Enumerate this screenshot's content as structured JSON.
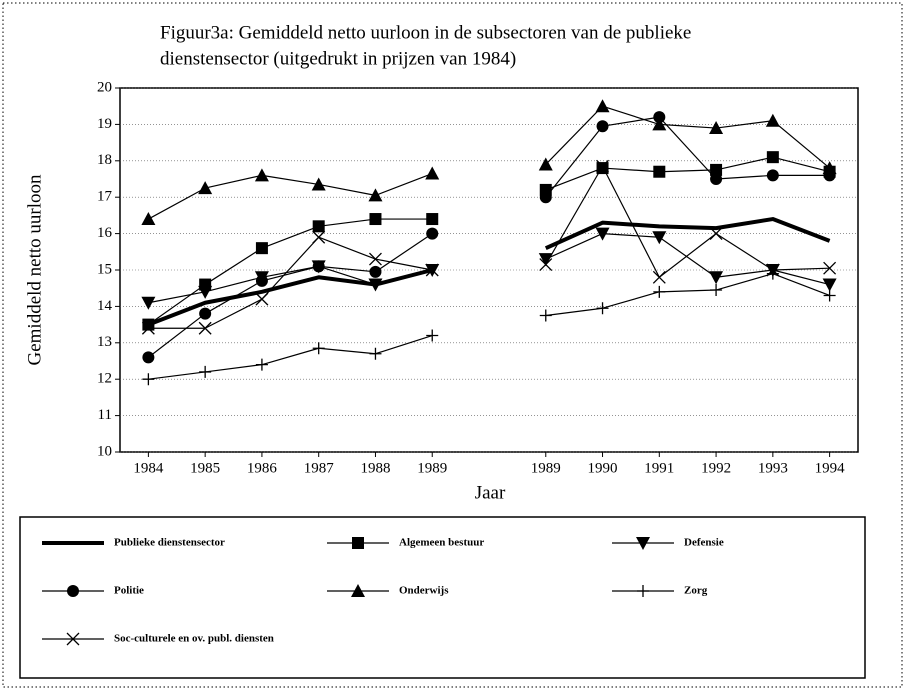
{
  "chart_data": {
    "type": "line",
    "title": [
      "Figuur3a: Gemiddeld netto uurloon in de subsectoren van de publieke",
      "dienstensector (uitgedrukt in prijzen van 1984)"
    ],
    "x_label": "Jaar",
    "y_label": "Gemiddeld netto uurloon",
    "categories": [
      "1984",
      "1985",
      "1986",
      "1987",
      "1988",
      "1989",
      null,
      "1989",
      "1990",
      "1991",
      "1992",
      "1993",
      "1994"
    ],
    "ylim": [
      10,
      20
    ],
    "yticks": [
      10,
      11,
      12,
      13,
      14,
      15,
      16,
      17,
      18,
      19,
      20
    ],
    "grid": true,
    "series": [
      {
        "name": "Publieke dienstensector",
        "color": "#000000",
        "marker": "none",
        "line_width": 4,
        "values": [
          13.5,
          14.1,
          14.4,
          14.8,
          14.6,
          15.0,
          null,
          15.6,
          16.3,
          16.2,
          16.15,
          16.4,
          15.8
        ]
      },
      {
        "name": "Algemeen bestuur",
        "color": "#000000",
        "marker": "square",
        "line_width": 1.2,
        "values": [
          13.5,
          14.6,
          15.6,
          16.2,
          16.4,
          16.4,
          null,
          17.2,
          17.8,
          17.7,
          17.75,
          18.1,
          17.7
        ]
      },
      {
        "name": "Defensie",
        "color": "#000000",
        "marker": "triangle-down",
        "line_width": 1.2,
        "values": [
          14.1,
          14.4,
          14.8,
          15.1,
          14.6,
          15.0,
          null,
          15.3,
          16.0,
          15.9,
          14.8,
          15.0,
          14.6
        ]
      },
      {
        "name": "Politie",
        "color": "#000000",
        "marker": "circle",
        "line_width": 1.2,
        "values": [
          12.6,
          13.8,
          14.7,
          15.1,
          14.95,
          16.0,
          null,
          17.0,
          18.95,
          19.2,
          17.5,
          17.6,
          17.6
        ]
      },
      {
        "name": "Onderwijs",
        "color": "#000000",
        "marker": "triangle-up",
        "line_width": 1.2,
        "values": [
          16.4,
          17.25,
          17.6,
          17.35,
          17.05,
          17.65,
          null,
          17.9,
          19.5,
          19.0,
          18.9,
          19.1,
          17.8
        ]
      },
      {
        "name": "Zorg",
        "color": "#000000",
        "marker": "plus",
        "line_width": 1.2,
        "values": [
          12.0,
          12.2,
          12.4,
          12.85,
          12.7,
          13.2,
          null,
          13.75,
          13.95,
          14.4,
          14.45,
          14.9,
          14.3
        ]
      },
      {
        "name": "Soc-culturele en ov. publ. diensten",
        "color": "#000000",
        "marker": "cross",
        "line_width": 1.2,
        "values": [
          13.4,
          13.4,
          14.2,
          15.9,
          15.3,
          15.0,
          null,
          15.15,
          17.85,
          14.8,
          16.0,
          15.0,
          15.05
        ]
      }
    ]
  }
}
